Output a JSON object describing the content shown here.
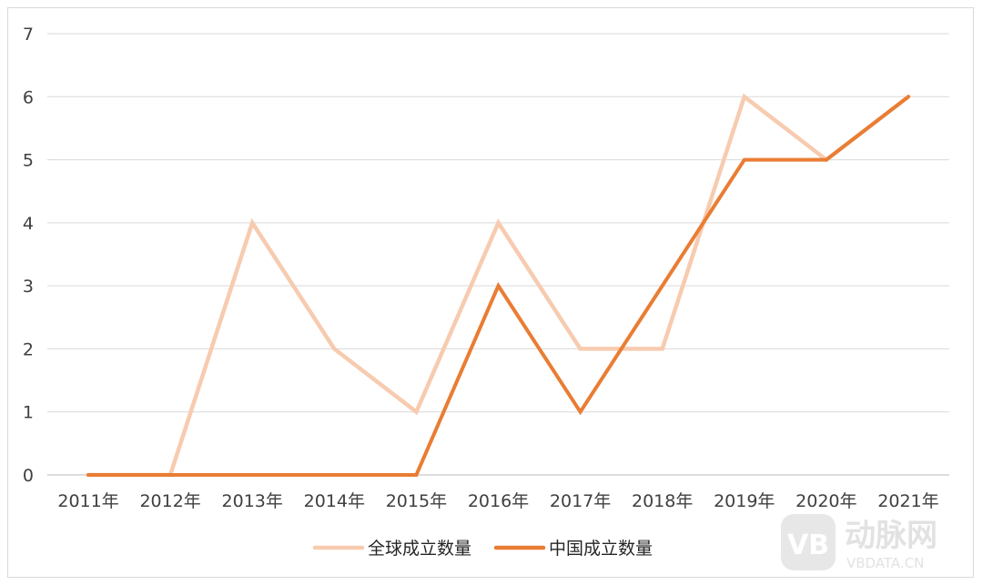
{
  "chart_data": {
    "type": "line",
    "categories": [
      "2011年",
      "2012年",
      "2013年",
      "2014年",
      "2015年",
      "2016年",
      "2017年",
      "2018年",
      "2019年",
      "2020年",
      "2021年"
    ],
    "series": [
      {
        "name": "全球成立数量",
        "values": [
          0,
          0,
          4,
          2,
          1,
          4,
          2,
          2,
          6,
          5,
          6
        ],
        "color": "#f7cbb0"
      },
      {
        "name": "中国成立数量",
        "values": [
          0,
          0,
          0,
          0,
          0,
          3,
          1,
          3,
          5,
          5,
          6
        ],
        "color": "#e97d34"
      }
    ],
    "ylim": [
      0,
      7
    ],
    "yticks": [
      0,
      1,
      2,
      3,
      4,
      5,
      6,
      7
    ],
    "grid": true,
    "legend_position": "bottom-center",
    "title": "",
    "xlabel": "",
    "ylabel": ""
  },
  "watermark": {
    "brand": "动脉网",
    "url": "VBDATA.CN",
    "logo_letters": "VB"
  }
}
